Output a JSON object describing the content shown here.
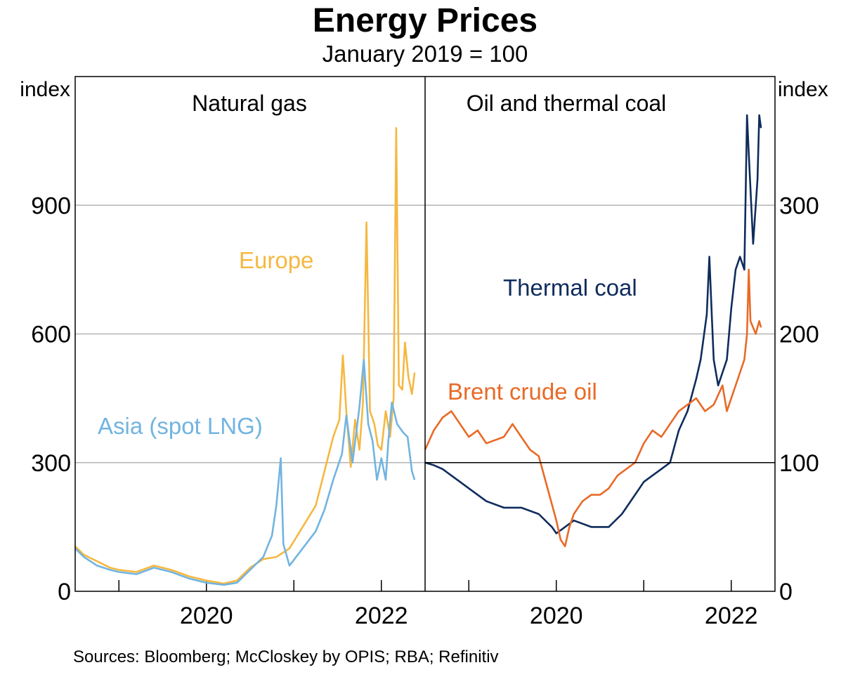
{
  "title": "Energy Prices",
  "subtitle": "January 2019 = 100",
  "footnote": "Sources: Bloomberg; McCloskey by OPIS; RBA; Refinitiv",
  "chart_data": [
    {
      "type": "line",
      "panel_title": "Natural gas",
      "ylabel": "index",
      "ylim": [
        0,
        1200
      ],
      "yticks": [
        0,
        300,
        600,
        900
      ],
      "xlim": [
        2018.5,
        2022.5
      ],
      "xticks": [
        2020,
        2022
      ],
      "xtick_labels": [
        "2020",
        "2022"
      ],
      "grid": true,
      "series": [
        {
          "name": "Europe",
          "color": "#F5B841",
          "label_position": "upper-middle",
          "points": [
            [
              2018.5,
              105
            ],
            [
              2018.6,
              85
            ],
            [
              2018.75,
              70
            ],
            [
              2018.9,
              55
            ],
            [
              2019.0,
              50
            ],
            [
              2019.2,
              45
            ],
            [
              2019.4,
              60
            ],
            [
              2019.6,
              50
            ],
            [
              2019.8,
              35
            ],
            [
              2020.0,
              25
            ],
            [
              2020.2,
              18
            ],
            [
              2020.35,
              25
            ],
            [
              2020.5,
              55
            ],
            [
              2020.65,
              75
            ],
            [
              2020.8,
              80
            ],
            [
              2020.95,
              100
            ],
            [
              2021.1,
              150
            ],
            [
              2021.25,
              200
            ],
            [
              2021.35,
              280
            ],
            [
              2021.45,
              360
            ],
            [
              2021.52,
              400
            ],
            [
              2021.56,
              550
            ],
            [
              2021.6,
              420
            ],
            [
              2021.65,
              290
            ],
            [
              2021.7,
              400
            ],
            [
              2021.75,
              330
            ],
            [
              2021.79,
              440
            ],
            [
              2021.83,
              860
            ],
            [
              2021.87,
              420
            ],
            [
              2021.92,
              390
            ],
            [
              2021.96,
              340
            ],
            [
              2022.0,
              330
            ],
            [
              2022.05,
              420
            ],
            [
              2022.1,
              360
            ],
            [
              2022.14,
              450
            ],
            [
              2022.17,
              1080
            ],
            [
              2022.2,
              480
            ],
            [
              2022.24,
              470
            ],
            [
              2022.27,
              580
            ],
            [
              2022.31,
              500
            ],
            [
              2022.35,
              460
            ],
            [
              2022.38,
              510
            ]
          ]
        },
        {
          "name": "Asia (spot LNG)",
          "color": "#72B4E0",
          "label_position": "middle-left",
          "points": [
            [
              2018.5,
              100
            ],
            [
              2018.6,
              80
            ],
            [
              2018.75,
              60
            ],
            [
              2018.9,
              50
            ],
            [
              2019.0,
              45
            ],
            [
              2019.2,
              40
            ],
            [
              2019.4,
              55
            ],
            [
              2019.6,
              45
            ],
            [
              2019.8,
              30
            ],
            [
              2020.0,
              20
            ],
            [
              2020.2,
              15
            ],
            [
              2020.35,
              20
            ],
            [
              2020.5,
              50
            ],
            [
              2020.65,
              80
            ],
            [
              2020.75,
              130
            ],
            [
              2020.8,
              200
            ],
            [
              2020.85,
              310
            ],
            [
              2020.88,
              110
            ],
            [
              2020.95,
              60
            ],
            [
              2021.1,
              100
            ],
            [
              2021.25,
              140
            ],
            [
              2021.35,
              190
            ],
            [
              2021.45,
              260
            ],
            [
              2021.55,
              320
            ],
            [
              2021.6,
              410
            ],
            [
              2021.67,
              300
            ],
            [
              2021.75,
              430
            ],
            [
              2021.8,
              540
            ],
            [
              2021.85,
              390
            ],
            [
              2021.9,
              350
            ],
            [
              2021.95,
              260
            ],
            [
              2022.0,
              310
            ],
            [
              2022.05,
              260
            ],
            [
              2022.08,
              350
            ],
            [
              2022.12,
              440
            ],
            [
              2022.18,
              390
            ],
            [
              2022.25,
              370
            ],
            [
              2022.3,
              360
            ],
            [
              2022.35,
              280
            ],
            [
              2022.38,
              260
            ]
          ]
        }
      ]
    },
    {
      "type": "line",
      "panel_title": "Oil and thermal coal",
      "ylabel": "index",
      "ylim": [
        0,
        400
      ],
      "yticks": [
        0,
        100,
        200,
        300
      ],
      "xlim": [
        2018.5,
        2022.5
      ],
      "xticks": [
        2020,
        2022
      ],
      "xtick_labels": [
        "2020",
        "2022"
      ],
      "grid": true,
      "series": [
        {
          "name": "Thermal coal",
          "color": "#0F2C5C",
          "label_position": "upper-right",
          "points": [
            [
              2018.5,
              100
            ],
            [
              2018.6,
              98
            ],
            [
              2018.7,
              95
            ],
            [
              2018.8,
              90
            ],
            [
              2018.9,
              85
            ],
            [
              2019.0,
              80
            ],
            [
              2019.2,
              70
            ],
            [
              2019.4,
              65
            ],
            [
              2019.6,
              65
            ],
            [
              2019.8,
              60
            ],
            [
              2019.95,
              50
            ],
            [
              2020.0,
              45
            ],
            [
              2020.1,
              50
            ],
            [
              2020.2,
              55
            ],
            [
              2020.4,
              50
            ],
            [
              2020.6,
              50
            ],
            [
              2020.75,
              60
            ],
            [
              2020.9,
              75
            ],
            [
              2021.0,
              85
            ],
            [
              2021.1,
              90
            ],
            [
              2021.2,
              95
            ],
            [
              2021.3,
              100
            ],
            [
              2021.4,
              125
            ],
            [
              2021.5,
              140
            ],
            [
              2021.6,
              165
            ],
            [
              2021.65,
              180
            ],
            [
              2021.72,
              215
            ],
            [
              2021.75,
              260
            ],
            [
              2021.78,
              210
            ],
            [
              2021.8,
              180
            ],
            [
              2021.85,
              160
            ],
            [
              2021.9,
              170
            ],
            [
              2021.95,
              180
            ],
            [
              2022.0,
              220
            ],
            [
              2022.05,
              250
            ],
            [
              2022.1,
              260
            ],
            [
              2022.15,
              250
            ],
            [
              2022.18,
              370
            ],
            [
              2022.2,
              340
            ],
            [
              2022.25,
              270
            ],
            [
              2022.3,
              320
            ],
            [
              2022.32,
              370
            ],
            [
              2022.34,
              360
            ]
          ]
        },
        {
          "name": "Brent crude oil",
          "color": "#E86A27",
          "label_position": "middle-left",
          "points": [
            [
              2018.5,
              110
            ],
            [
              2018.6,
              125
            ],
            [
              2018.7,
              135
            ],
            [
              2018.8,
              140
            ],
            [
              2018.9,
              130
            ],
            [
              2019.0,
              120
            ],
            [
              2019.1,
              125
            ],
            [
              2019.2,
              115
            ],
            [
              2019.4,
              120
            ],
            [
              2019.5,
              130
            ],
            [
              2019.6,
              120
            ],
            [
              2019.7,
              110
            ],
            [
              2019.8,
              105
            ],
            [
              2019.9,
              80
            ],
            [
              2020.0,
              55
            ],
            [
              2020.05,
              40
            ],
            [
              2020.1,
              35
            ],
            [
              2020.15,
              50
            ],
            [
              2020.2,
              60
            ],
            [
              2020.3,
              70
            ],
            [
              2020.4,
              75
            ],
            [
              2020.5,
              75
            ],
            [
              2020.6,
              80
            ],
            [
              2020.7,
              90
            ],
            [
              2020.8,
              95
            ],
            [
              2020.9,
              100
            ],
            [
              2021.0,
              115
            ],
            [
              2021.1,
              125
            ],
            [
              2021.2,
              120
            ],
            [
              2021.3,
              130
            ],
            [
              2021.4,
              140
            ],
            [
              2021.5,
              145
            ],
            [
              2021.6,
              150
            ],
            [
              2021.7,
              140
            ],
            [
              2021.8,
              145
            ],
            [
              2021.9,
              160
            ],
            [
              2021.95,
              140
            ],
            [
              2022.0,
              150
            ],
            [
              2022.1,
              170
            ],
            [
              2022.15,
              180
            ],
            [
              2022.18,
              200
            ],
            [
              2022.2,
              250
            ],
            [
              2022.22,
              210
            ],
            [
              2022.28,
              200
            ],
            [
              2022.32,
              210
            ],
            [
              2022.34,
              205
            ]
          ]
        }
      ]
    }
  ],
  "left_labels": {
    "europe": "Europe",
    "asia": "Asia (spot LNG)"
  },
  "right_labels": {
    "coal": "Thermal coal",
    "oil": "Brent crude oil"
  }
}
